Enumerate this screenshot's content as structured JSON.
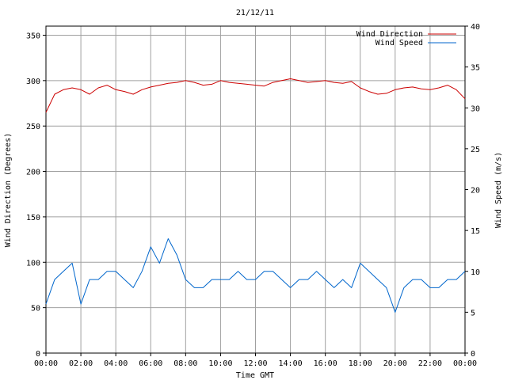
{
  "chart_data": {
    "type": "line",
    "title": "21/12/11",
    "xlabel": "Time GMT",
    "ylabel_left": "Wind Direction (Degrees)",
    "ylabel_right": "Wind Speed (m/s)",
    "x_ticks": [
      "00:00",
      "02:00",
      "04:00",
      "06:00",
      "08:00",
      "10:00",
      "12:00",
      "14:00",
      "16:00",
      "18:00",
      "20:00",
      "22:00",
      "00:00"
    ],
    "x_range_hours": [
      0,
      24
    ],
    "y_left_ticks": [
      "0",
      "50",
      "100",
      "150",
      "200",
      "250",
      "300",
      "350"
    ],
    "y_left_range": [
      0,
      360
    ],
    "y_right_ticks": [
      "0",
      "5",
      "10",
      "15",
      "20",
      "25",
      "30",
      "35",
      "40"
    ],
    "y_right_range": [
      0,
      40
    ],
    "grid": true,
    "legend_position": "top-right",
    "series": [
      {
        "name": "Wind Direction",
        "axis": "left",
        "color": "#cc0000",
        "x_hours": [
          0,
          0.5,
          1,
          1.5,
          2,
          2.5,
          3,
          3.5,
          4,
          4.5,
          5,
          5.5,
          6,
          6.5,
          7,
          7.5,
          8,
          8.5,
          9,
          9.5,
          10,
          10.5,
          11,
          11.5,
          12,
          12.5,
          13,
          13.5,
          14,
          14.5,
          15,
          15.5,
          16,
          16.5,
          17,
          17.5,
          18,
          18.5,
          19,
          19.5,
          20,
          20.5,
          21,
          21.5,
          22,
          22.5,
          23,
          23.5,
          24
        ],
        "values": [
          265,
          285,
          290,
          292,
          290,
          285,
          292,
          295,
          290,
          288,
          285,
          290,
          293,
          295,
          297,
          298,
          300,
          298,
          295,
          296,
          300,
          298,
          297,
          296,
          295,
          294,
          298,
          300,
          302,
          300,
          298,
          299,
          300,
          298,
          297,
          299,
          292,
          288,
          285,
          286,
          290,
          292,
          293,
          291,
          290,
          292,
          295,
          290,
          280
        ]
      },
      {
        "name": "Wind Speed",
        "axis": "right",
        "color": "#0066cc",
        "x_hours": [
          0,
          0.5,
          1,
          1.5,
          2,
          2.5,
          3,
          3.5,
          4,
          4.5,
          5,
          5.5,
          6,
          6.5,
          7,
          7.5,
          8,
          8.5,
          9,
          9.5,
          10,
          10.5,
          11,
          11.5,
          12,
          12.5,
          13,
          13.5,
          14,
          14.5,
          15,
          15.5,
          16,
          16.5,
          17,
          17.5,
          18,
          18.5,
          19,
          19.5,
          20,
          20.5,
          21,
          21.5,
          22,
          22.5,
          23,
          23.5,
          24
        ],
        "values": [
          6,
          9,
          10,
          11,
          6,
          9,
          9,
          10,
          10,
          9,
          8,
          10,
          13,
          11,
          14,
          12,
          9,
          8,
          8,
          9,
          9,
          9,
          10,
          9,
          9,
          10,
          10,
          9,
          8,
          9,
          9,
          10,
          9,
          8,
          9,
          8,
          11,
          10,
          9,
          8,
          5,
          8,
          9,
          9,
          8,
          8,
          9,
          9,
          10
        ]
      }
    ]
  }
}
